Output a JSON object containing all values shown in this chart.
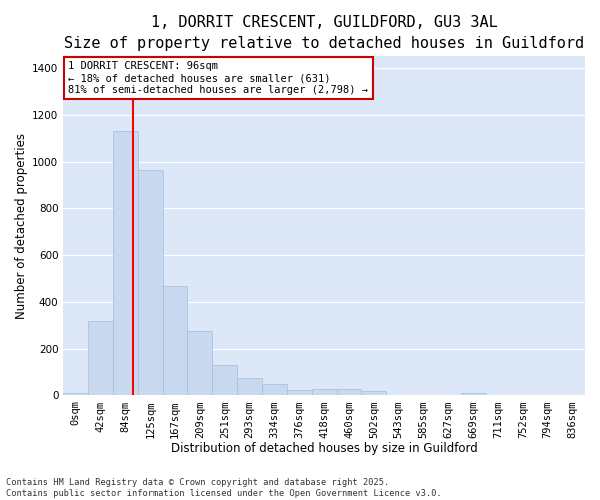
{
  "title_line1": "1, DORRIT CRESCENT, GUILDFORD, GU3 3AL",
  "title_line2": "Size of property relative to detached houses in Guildford",
  "xlabel": "Distribution of detached houses by size in Guildford",
  "ylabel": "Number of detached properties",
  "bar_color": "#c8d9ef",
  "bar_edge_color": "#a0bedd",
  "plot_bg_color": "#dce8f8",
  "figure_bg_color": "#ffffff",
  "grid_color": "#ffffff",
  "categories": [
    "0sqm",
    "42sqm",
    "84sqm",
    "125sqm",
    "167sqm",
    "209sqm",
    "251sqm",
    "293sqm",
    "334sqm",
    "376sqm",
    "418sqm",
    "460sqm",
    "502sqm",
    "543sqm",
    "585sqm",
    "627sqm",
    "669sqm",
    "711sqm",
    "752sqm",
    "794sqm",
    "836sqm"
  ],
  "bar_heights": [
    10,
    320,
    1130,
    965,
    470,
    275,
    130,
    75,
    48,
    25,
    28,
    28,
    20,
    0,
    0,
    0,
    10,
    0,
    0,
    0,
    0
  ],
  "red_line_x": 2.29,
  "annotation_text": "1 DORRIT CRESCENT: 96sqm\n← 18% of detached houses are smaller (631)\n81% of semi-detached houses are larger (2,798) →",
  "annotation_box_color": "#ffffff",
  "annotation_border_color": "#cc0000",
  "ylim": [
    0,
    1450
  ],
  "yticks": [
    0,
    200,
    400,
    600,
    800,
    1000,
    1200,
    1400
  ],
  "footnote": "Contains HM Land Registry data © Crown copyright and database right 2025.\nContains public sector information licensed under the Open Government Licence v3.0.",
  "title_fontsize": 11,
  "subtitle_fontsize": 9.5,
  "axis_label_fontsize": 8.5,
  "tick_fontsize": 7.5,
  "annotation_fontsize": 7.5
}
